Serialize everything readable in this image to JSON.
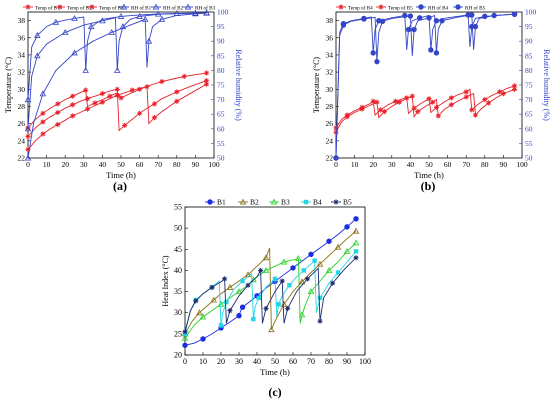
{
  "panels": {
    "a": "(a)",
    "b": "(b)",
    "c": "(c)"
  },
  "chart_data": [
    {
      "id": "a",
      "type": "line",
      "xlabel": "Time (h)",
      "ylabel": "Temperature (°C)",
      "y2label": "Relative humidity (%)",
      "xlim": [
        0,
        100
      ],
      "ylim": [
        22,
        39
      ],
      "y2lim": [
        50,
        100
      ],
      "xticks": [
        0,
        10,
        20,
        30,
        40,
        50,
        60,
        70,
        80,
        90,
        100
      ],
      "yticks": [
        22,
        24,
        26,
        28,
        30,
        32,
        34,
        36,
        38
      ],
      "y2ticks": [
        50,
        55,
        60,
        65,
        70,
        75,
        80,
        85,
        90,
        95,
        100
      ],
      "grid": false,
      "legend_position": "top",
      "series": [
        {
          "name": "Temp of B1",
          "axis": "left",
          "marker": "star",
          "color": "#e8202a",
          "x": [
            0,
            4,
            8,
            12,
            16,
            20,
            24,
            28,
            31,
            32,
            36,
            40,
            44,
            48,
            50,
            54,
            60,
            66,
            72,
            78,
            84,
            90,
            96
          ],
          "y": [
            25.5,
            26.5,
            27.2,
            27.8,
            28.3,
            28.8,
            29.2,
            29.6,
            29.9,
            28.0,
            28.4,
            28.8,
            29.2,
            29.6,
            29.0,
            29.4,
            30.0,
            30.5,
            30.9,
            31.2,
            31.5,
            31.7,
            31.9
          ]
        },
        {
          "name": "Temp of B2",
          "axis": "left",
          "marker": "star",
          "color": "#e8202a",
          "x": [
            0,
            4,
            8,
            12,
            16,
            20,
            24,
            28,
            32,
            36,
            40,
            44,
            48,
            49,
            52,
            56,
            60,
            64,
            68,
            72,
            80,
            88,
            96
          ],
          "y": [
            24.5,
            25.5,
            26.2,
            26.8,
            27.3,
            27.8,
            28.2,
            28.6,
            28.9,
            29.2,
            29.5,
            29.8,
            30.0,
            25.2,
            25.8,
            26.5,
            27.2,
            27.8,
            28.3,
            28.9,
            29.7,
            30.4,
            31.0
          ]
        },
        {
          "name": "Temp of B3",
          "axis": "left",
          "marker": "star",
          "color": "#e8202a",
          "x": [
            0,
            4,
            8,
            12,
            16,
            20,
            24,
            28,
            32,
            36,
            40,
            44,
            48,
            52,
            56,
            60,
            64,
            65,
            68,
            72,
            80,
            88,
            96
          ],
          "y": [
            23.0,
            24.0,
            24.8,
            25.4,
            25.9,
            26.4,
            26.9,
            27.3,
            27.7,
            28.1,
            28.5,
            28.9,
            29.3,
            29.6,
            29.9,
            30.1,
            30.3,
            26.0,
            26.7,
            27.4,
            28.6,
            29.6,
            30.6
          ]
        },
        {
          "name": "RH of B1",
          "axis": "right",
          "marker": "tri",
          "color": "#3545c8",
          "x": [
            0,
            2,
            5,
            10,
            15,
            20,
            25,
            30,
            31,
            32,
            34,
            40,
            50,
            60,
            70,
            80,
            90,
            96
          ],
          "y": [
            70,
            88,
            92,
            95,
            96.5,
            97.2,
            97.8,
            98.3,
            80,
            90,
            95,
            97.5,
            98.5,
            99,
            99.3,
            99.5,
            99.6,
            99.7
          ]
        },
        {
          "name": "RH of B2",
          "axis": "right",
          "marker": "tri",
          "color": "#3545c8",
          "x": [
            0,
            2,
            5,
            10,
            20,
            30,
            40,
            47,
            48,
            49,
            51,
            55,
            60,
            70,
            80,
            90,
            96
          ],
          "y": [
            60,
            78,
            85,
            89,
            93,
            95.5,
            97,
            98,
            80,
            90,
            95,
            97.5,
            98.5,
            99.2,
            99.5,
            99.6,
            99.7
          ]
        },
        {
          "name": "RH of B3",
          "axis": "right",
          "marker": "tri",
          "color": "#3545c8",
          "x": [
            0,
            3,
            8,
            15,
            25,
            35,
            45,
            55,
            63,
            64,
            65,
            67,
            72,
            80,
            90,
            96
          ],
          "y": [
            50,
            62,
            72,
            80,
            86,
            90,
            93,
            95.5,
            97.5,
            81,
            90,
            95,
            97.5,
            98.8,
            99.4,
            99.6
          ]
        }
      ]
    },
    {
      "id": "b",
      "type": "line",
      "xlabel": "Time (h)",
      "ylabel": "Temperature (°C)",
      "y2label": "Relative humidity (%)",
      "xlim": [
        0,
        100
      ],
      "ylim": [
        22,
        39
      ],
      "y2lim": [
        50,
        100
      ],
      "xticks": [
        0,
        10,
        20,
        30,
        40,
        50,
        60,
        70,
        80,
        90,
        100
      ],
      "yticks": [
        22,
        24,
        26,
        28,
        30,
        32,
        34,
        36,
        38
      ],
      "y2ticks": [
        50,
        55,
        60,
        65,
        70,
        75,
        80,
        85,
        90,
        95,
        100
      ],
      "grid": false,
      "legend_position": "top",
      "series": [
        {
          "name": "Temp of B4",
          "axis": "left",
          "marker": "star",
          "color": "#e8202a",
          "x": [
            0,
            3,
            6,
            10,
            14,
            18,
            20,
            21,
            24,
            28,
            32,
            36,
            38,
            39,
            42,
            46,
            50,
            51,
            54,
            58,
            62,
            66,
            70,
            72,
            73,
            76,
            80,
            84,
            88,
            92,
            96
          ],
          "y": [
            25.5,
            26.5,
            27.0,
            27.5,
            27.9,
            28.3,
            28.6,
            27.0,
            27.6,
            28.2,
            28.6,
            28.9,
            29.0,
            27.2,
            27.8,
            28.4,
            28.9,
            27.3,
            27.9,
            28.5,
            29.0,
            29.4,
            29.7,
            30.0,
            27.6,
            28.2,
            28.8,
            29.3,
            29.7,
            30.1,
            30.4
          ]
        },
        {
          "name": "Temp of B5",
          "axis": "left",
          "marker": "star",
          "color": "#e8202a",
          "x": [
            0,
            3,
            6,
            10,
            14,
            18,
            22,
            23,
            26,
            30,
            34,
            38,
            41,
            42,
            44,
            48,
            52,
            54,
            55,
            58,
            62,
            66,
            70,
            74,
            75,
            78,
            82,
            86,
            90,
            96
          ],
          "y": [
            25.0,
            26.2,
            26.8,
            27.3,
            27.7,
            28.1,
            28.5,
            26.7,
            27.4,
            28.0,
            28.5,
            28.9,
            29.2,
            26.8,
            27.4,
            28.0,
            28.5,
            28.8,
            26.9,
            27.6,
            28.2,
            28.7,
            29.1,
            29.5,
            27.0,
            27.7,
            28.4,
            29.0,
            29.5,
            30.0
          ]
        },
        {
          "name": "RH of B4",
          "axis": "right",
          "marker": "circle",
          "color": "#3545c8",
          "x": [
            0,
            2,
            4,
            8,
            15,
            19,
            20,
            21,
            23,
            30,
            37,
            38,
            39,
            41,
            45,
            50,
            51,
            52,
            54,
            60,
            71,
            72,
            73,
            75,
            80,
            90,
            96
          ],
          "y": [
            50,
            93,
            96,
            97,
            97.8,
            98.3,
            86,
            94,
            97,
            98,
            98.8,
            87,
            94,
            97,
            98,
            98.8,
            87,
            94,
            97,
            98,
            99,
            88,
            95,
            97.8,
            98.5,
            99,
            99.3
          ]
        },
        {
          "name": "RH of B5",
          "axis": "right",
          "marker": "circle",
          "color": "#3545c8",
          "x": [
            0,
            2,
            4,
            8,
            15,
            21,
            22,
            23,
            25,
            30,
            40,
            41,
            42,
            44,
            50,
            53,
            54,
            55,
            57,
            65,
            73,
            74,
            75,
            77,
            85,
            96
          ],
          "y": [
            50,
            92,
            95.5,
            96.8,
            97.6,
            98.2,
            83,
            93,
            96.8,
            97.8,
            98.6,
            85,
            94,
            97,
            98,
            98.8,
            86,
            94,
            97,
            98.2,
            99,
            87,
            95,
            97.8,
            98.8,
            99.2
          ]
        }
      ]
    },
    {
      "id": "c",
      "type": "line",
      "xlabel": "Time (h)",
      "ylabel": "Heat Index (°C)",
      "xlim": [
        0,
        100
      ],
      "ylim": [
        20,
        55
      ],
      "xticks": [
        0,
        10,
        20,
        30,
        40,
        50,
        60,
        70,
        80,
        90,
        100
      ],
      "yticks": [
        20,
        25,
        30,
        35,
        40,
        45,
        50,
        55
      ],
      "grid": false,
      "legend_position": "top",
      "series": [
        {
          "name": "B1",
          "marker": "circle",
          "color": "#1a2ee0",
          "x": [
            0,
            5,
            10,
            15,
            20,
            25,
            30,
            31,
            32,
            35,
            40,
            45,
            50,
            55,
            60,
            65,
            70,
            75,
            80,
            85,
            90,
            95
          ],
          "y": [
            22.3,
            22.8,
            23.8,
            25.0,
            26.4,
            27.8,
            29.3,
            30.5,
            31.3,
            32.3,
            34.0,
            35.8,
            37.4,
            39.0,
            40.6,
            42.2,
            43.8,
            45.3,
            46.9,
            48.5,
            50.3,
            52.2
          ]
        },
        {
          "name": "B2",
          "marker": "tri",
          "color": "#8a6d12",
          "x": [
            0,
            4,
            8,
            12,
            16,
            20,
            25,
            30,
            35,
            40,
            45,
            47,
            48,
            50,
            55,
            60,
            65,
            70,
            75,
            80,
            85,
            90,
            95
          ],
          "y": [
            25.0,
            28.0,
            30.0,
            31.5,
            33.0,
            34.5,
            36.0,
            37.5,
            39.0,
            41.0,
            43.0,
            45.3,
            26.0,
            28.0,
            32.0,
            35.0,
            37.3,
            39.5,
            41.5,
            43.5,
            45.5,
            47.5,
            49.3
          ]
        },
        {
          "name": "B3",
          "marker": "tri",
          "color": "#22d024",
          "x": [
            0,
            5,
            10,
            15,
            20,
            25,
            30,
            35,
            38,
            40,
            45,
            50,
            55,
            60,
            63,
            64,
            65,
            67,
            70,
            75,
            80,
            85,
            90,
            95
          ],
          "y": [
            24.0,
            27.0,
            29.0,
            30.5,
            32.0,
            33.5,
            35.0,
            36.5,
            37.8,
            38.5,
            40.0,
            41.0,
            42.0,
            42.5,
            42.8,
            27.5,
            29.5,
            32.0,
            35.0,
            37.5,
            40.0,
            42.0,
            44.5,
            46.5
          ]
        },
        {
          "name": "B4",
          "marker": "square",
          "color": "#22d6e6",
          "x": [
            0,
            3,
            6,
            10,
            15,
            19,
            20,
            21,
            23,
            27,
            32,
            37,
            38,
            39,
            41,
            45,
            50,
            51,
            52,
            54,
            58,
            62,
            66,
            70,
            72,
            73,
            75,
            80,
            85,
            90,
            95
          ],
          "y": [
            25.0,
            30.5,
            33.0,
            34.5,
            36.0,
            37.5,
            27.0,
            30.0,
            32.5,
            35.5,
            37.5,
            39.3,
            28.5,
            31.5,
            33.5,
            36.0,
            38.0,
            29.0,
            32.0,
            34.0,
            36.5,
            38.5,
            40.0,
            41.5,
            42.3,
            30.0,
            33.5,
            37.0,
            39.5,
            42.0,
            44.5
          ]
        },
        {
          "name": "B5",
          "marker": "star",
          "color": "#1c2a6e",
          "x": [
            0,
            3,
            6,
            10,
            15,
            20,
            22,
            23,
            25,
            30,
            35,
            40,
            42,
            43,
            45,
            50,
            54,
            55,
            57,
            62,
            68,
            74,
            75,
            77,
            82,
            88,
            95
          ],
          "y": [
            25.5,
            30.5,
            32.8,
            34.5,
            36.0,
            37.3,
            38.0,
            27.5,
            30.5,
            34.0,
            36.5,
            38.5,
            40.0,
            27.5,
            31.0,
            35.0,
            37.5,
            27.5,
            31.0,
            35.0,
            38.0,
            40.5,
            28.0,
            33.5,
            37.0,
            40.0,
            43.0
          ]
        }
      ]
    }
  ]
}
